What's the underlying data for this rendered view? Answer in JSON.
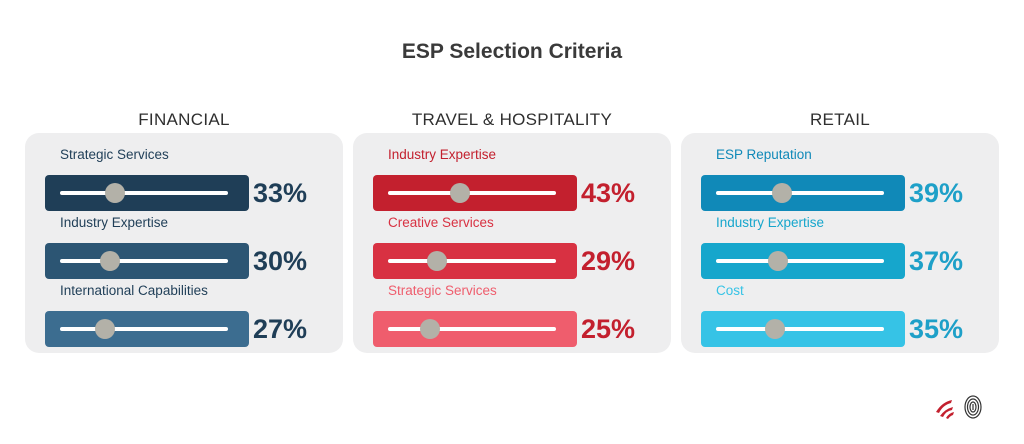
{
  "chart_data": {
    "type": "bar",
    "title": "ESP Selection Criteria",
    "groups": [
      {
        "name": "FINANCIAL",
        "items": [
          {
            "label": "Strategic Services",
            "value": 33,
            "display": "33%"
          },
          {
            "label": "Industry Expertise",
            "value": 30,
            "display": "30%"
          },
          {
            "label": "International Capabilities",
            "value": 27,
            "display": "27%"
          }
        ],
        "bar_colors": [
          "#1f3e57",
          "#2c5573",
          "#3c6d90"
        ],
        "label_colors": [
          "#1f3e57",
          "#2c5573",
          "#3c6d90"
        ],
        "pct_color": "#1f3e57"
      },
      {
        "name": "TRAVEL & HOSPITALITY",
        "items": [
          {
            "label": "Industry Expertise",
            "value": 43,
            "display": "43%"
          },
          {
            "label": "Creative Services",
            "value": 29,
            "display": "29%"
          },
          {
            "label": "Strategic Services",
            "value": 25,
            "display": "25%"
          }
        ],
        "bar_colors": [
          "#c3202e",
          "#d83142",
          "#ef5d6d"
        ],
        "label_colors": [
          "#c3202e",
          "#d83142",
          "#ef5d6d"
        ],
        "pct_color": "#c3202e"
      },
      {
        "name": "RETAIL",
        "items": [
          {
            "label": "ESP Reputation",
            "value": 39,
            "display": "39%"
          },
          {
            "label": "Industry Expertise",
            "value": 37,
            "display": "37%"
          },
          {
            "label": "Cost",
            "value": 35,
            "display": "35%"
          }
        ],
        "bar_colors": [
          "#1089b8",
          "#16a6cc",
          "#36c3e6"
        ],
        "label_colors": [
          "#1089b8",
          "#16a6cc",
          "#36c3e6"
        ],
        "pct_color": "#1ea0c8"
      }
    ],
    "value_range": [
      0,
      100
    ]
  }
}
